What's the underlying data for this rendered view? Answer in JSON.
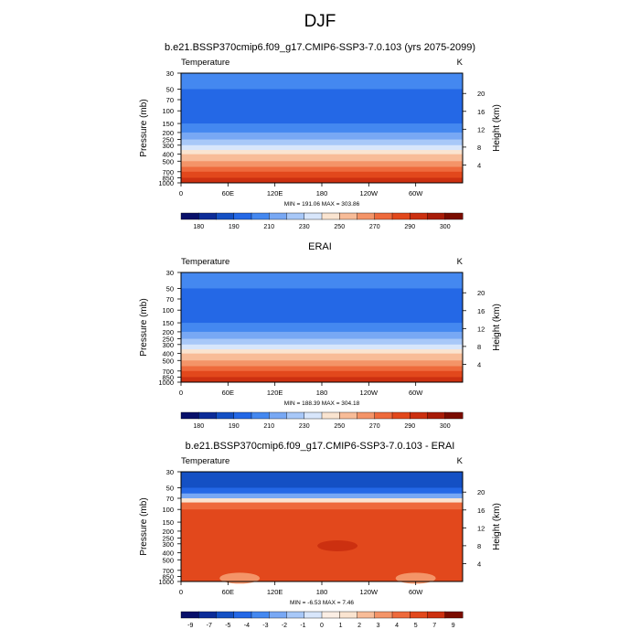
{
  "figure_title": "DJF",
  "chart_data": [
    {
      "type": "heatmap",
      "title": "b.e21.BSSP370cmip6.f09_g17.CMIP6-SSP3-7.0.103 (yrs 2075-2099)",
      "left_label": "Temperature",
      "unit_label": "K",
      "ylabel": "Pressure (mb)",
      "ylabel_right": "Height (km)",
      "x_ticks": [
        "0",
        "60E",
        "120E",
        "180",
        "120W",
        "60W"
      ],
      "y_ticks": [
        "30",
        "50",
        "70",
        "100",
        "150",
        "200",
        "250",
        "300",
        "400",
        "500",
        "700",
        "850",
        "1000"
      ],
      "height_ticks": [
        "20",
        "16",
        "12",
        "8",
        "4"
      ],
      "stats": "MIN = 191.06  MAX = 303.86",
      "min": 191.06,
      "max": 303.86,
      "colorbar_labels": [
        "180",
        "190",
        "210",
        "230",
        "250",
        "270",
        "290",
        "300"
      ],
      "colorbar_colors": [
        "#08106a",
        "#0c2c98",
        "#1450c4",
        "#2468e6",
        "#4488f0",
        "#78a8f4",
        "#a8c8f8",
        "#d8e6fb",
        "#fae4d0",
        "#f8bc98",
        "#f49468",
        "#ee6a3c",
        "#e2481c",
        "#cc3010",
        "#a81c08",
        "#7a0c00"
      ],
      "rows": [
        {
          "p": 30,
          "c": "#4488f0"
        },
        {
          "p": 50,
          "c": "#2468e6"
        },
        {
          "p": 100,
          "c": "#2468e6"
        },
        {
          "p": 150,
          "c": "#4488f0"
        },
        {
          "p": 200,
          "c": "#78a8f4"
        },
        {
          "p": 250,
          "c": "#a8c8f8"
        },
        {
          "p": 300,
          "c": "#d8e6fb"
        },
        {
          "p": 350,
          "c": "#fae4d0"
        },
        {
          "p": 400,
          "c": "#f8bc98"
        },
        {
          "p": 500,
          "c": "#f49468"
        },
        {
          "p": 600,
          "c": "#ee6a3c"
        },
        {
          "p": 700,
          "c": "#e2481c"
        },
        {
          "p": 850,
          "c": "#cc3010"
        },
        {
          "p": 1000,
          "c": "#a81c08"
        }
      ],
      "blobs": []
    },
    {
      "type": "heatmap",
      "title": "ERAI",
      "left_label": "Temperature",
      "unit_label": "K",
      "ylabel": "Pressure (mb)",
      "ylabel_right": "Height (km)",
      "x_ticks": [
        "0",
        "60E",
        "120E",
        "180",
        "120W",
        "60W"
      ],
      "y_ticks": [
        "30",
        "50",
        "70",
        "100",
        "150",
        "200",
        "250",
        "300",
        "400",
        "500",
        "700",
        "850",
        "1000"
      ],
      "height_ticks": [
        "20",
        "16",
        "12",
        "8",
        "4"
      ],
      "stats": "MIN = 188.39  MAX = 304.18",
      "min": 188.39,
      "max": 304.18,
      "colorbar_labels": [
        "180",
        "190",
        "210",
        "230",
        "250",
        "270",
        "290",
        "300"
      ],
      "colorbar_colors": [
        "#08106a",
        "#0c2c98",
        "#1450c4",
        "#2468e6",
        "#4488f0",
        "#78a8f4",
        "#a8c8f8",
        "#d8e6fb",
        "#fae4d0",
        "#f8bc98",
        "#f49468",
        "#ee6a3c",
        "#e2481c",
        "#cc3010",
        "#a81c08",
        "#7a0c00"
      ],
      "rows": [
        {
          "p": 30,
          "c": "#4488f0"
        },
        {
          "p": 50,
          "c": "#2468e6"
        },
        {
          "p": 100,
          "c": "#2468e6"
        },
        {
          "p": 150,
          "c": "#4488f0"
        },
        {
          "p": 200,
          "c": "#78a8f4"
        },
        {
          "p": 250,
          "c": "#a8c8f8"
        },
        {
          "p": 300,
          "c": "#d8e6fb"
        },
        {
          "p": 350,
          "c": "#fae4d0"
        },
        {
          "p": 400,
          "c": "#f8bc98"
        },
        {
          "p": 500,
          "c": "#f49468"
        },
        {
          "p": 600,
          "c": "#ee6a3c"
        },
        {
          "p": 700,
          "c": "#e2481c"
        },
        {
          "p": 850,
          "c": "#cc3010"
        },
        {
          "p": 1000,
          "c": "#a81c08"
        }
      ],
      "blobs": []
    },
    {
      "type": "heatmap",
      "title": "b.e21.BSSP370cmip6.f09_g17.CMIP6-SSP3-7.0.103 - ERAI",
      "left_label": "Temperature",
      "unit_label": "K",
      "ylabel": "Pressure (mb)",
      "ylabel_right": "Height (km)",
      "x_ticks": [
        "0",
        "60E",
        "120E",
        "180",
        "120W",
        "60W"
      ],
      "y_ticks": [
        "30",
        "50",
        "70",
        "100",
        "150",
        "200",
        "250",
        "300",
        "400",
        "500",
        "700",
        "850",
        "1000"
      ],
      "height_ticks": [
        "20",
        "16",
        "12",
        "8",
        "4"
      ],
      "stats": "MIN = -6.53  MAX =  7.46",
      "min": -6.53,
      "max": 7.46,
      "colorbar_labels": [
        "-9",
        "-7",
        "-5",
        "-4",
        "-3",
        "-2",
        "-1",
        "0",
        "1",
        "2",
        "3",
        "4",
        "5",
        "7",
        "9"
      ],
      "colorbar_colors": [
        "#08106a",
        "#0c2c98",
        "#1450c4",
        "#2468e6",
        "#4488f0",
        "#78a8f4",
        "#a8c8f8",
        "#d8e6fb",
        "#fbeee4",
        "#fae4d0",
        "#f8bc98",
        "#f49468",
        "#ee6a3c",
        "#e2481c",
        "#cc3010",
        "#7a0c00"
      ],
      "rows": [
        {
          "p": 30,
          "c": "#1450c4"
        },
        {
          "p": 50,
          "c": "#2468e6"
        },
        {
          "p": 60,
          "c": "#78a8f4"
        },
        {
          "p": 70,
          "c": "#fae4d0"
        },
        {
          "p": 80,
          "c": "#ee6a3c"
        },
        {
          "p": 100,
          "c": "#e2481c"
        },
        {
          "p": 1000,
          "c": "#e2481c"
        }
      ],
      "blobs": [
        {
          "lon": 200,
          "p": 320,
          "c": "#cc3010"
        },
        {
          "lon": 75,
          "p": 900,
          "c": "#f49468"
        },
        {
          "lon": 300,
          "p": 900,
          "c": "#f49468"
        }
      ]
    }
  ]
}
